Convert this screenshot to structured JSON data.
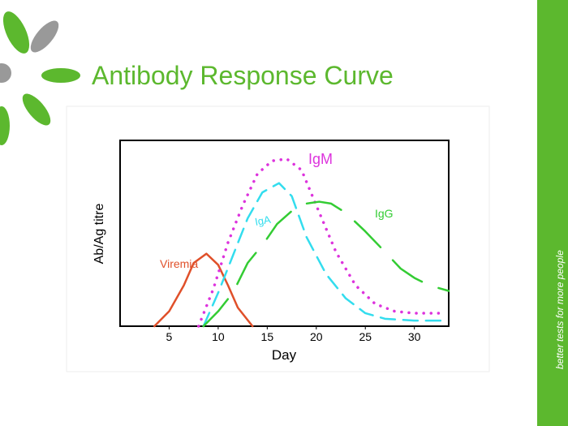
{
  "title": "Antibody Response Curve",
  "tagline": "better tests for more people",
  "chart_data": {
    "type": "line",
    "xlabel": "Day",
    "ylabel": "Ab/Ag titre",
    "xlim": [
      0,
      33.5
    ],
    "ylim": [
      0,
      100
    ],
    "xticks": [
      5,
      10,
      15,
      20,
      25,
      30
    ],
    "series": [
      {
        "name": "Viremia",
        "color": "#e0502a",
        "line_style": "solid",
        "x": [
          3.5,
          5,
          6.5,
          7.5,
          8.8,
          10,
          11,
          12,
          13.5
        ],
        "values": [
          0,
          8,
          22,
          34,
          39,
          33,
          22,
          10,
          0
        ]
      },
      {
        "name": "IgA",
        "color": "#33ddee",
        "line_style": "dashed",
        "x": [
          8.5,
          10,
          11.5,
          13,
          14.5,
          16.2,
          17.5,
          19,
          21,
          23,
          25,
          27,
          30,
          32.7
        ],
        "values": [
          0,
          18,
          38,
          58,
          72,
          77,
          70,
          48,
          28,
          15,
          7,
          4,
          3,
          3
        ]
      },
      {
        "name": "IgM",
        "color": "#dd33dd",
        "line_style": "dotted",
        "x": [
          8,
          9.5,
          11,
          12.5,
          14,
          15.5,
          17,
          18.5,
          20,
          22,
          24,
          26,
          28,
          30,
          33
        ],
        "values": [
          0,
          20,
          45,
          65,
          82,
          89,
          90,
          84,
          65,
          40,
          22,
          12,
          8,
          7,
          7
        ]
      },
      {
        "name": "IgG",
        "color": "#33cc33",
        "line_style": "long-dashed",
        "x": [
          8.5,
          10,
          11.5,
          13,
          14.7,
          16,
          17.5,
          19,
          20.3,
          21.5,
          23,
          25,
          27,
          28.6,
          30,
          31.5,
          33.5
        ],
        "values": [
          0,
          8,
          18,
          34,
          45,
          55,
          62,
          66,
          67,
          66,
          61,
          51,
          40,
          31,
          26,
          22,
          19
        ]
      }
    ]
  }
}
